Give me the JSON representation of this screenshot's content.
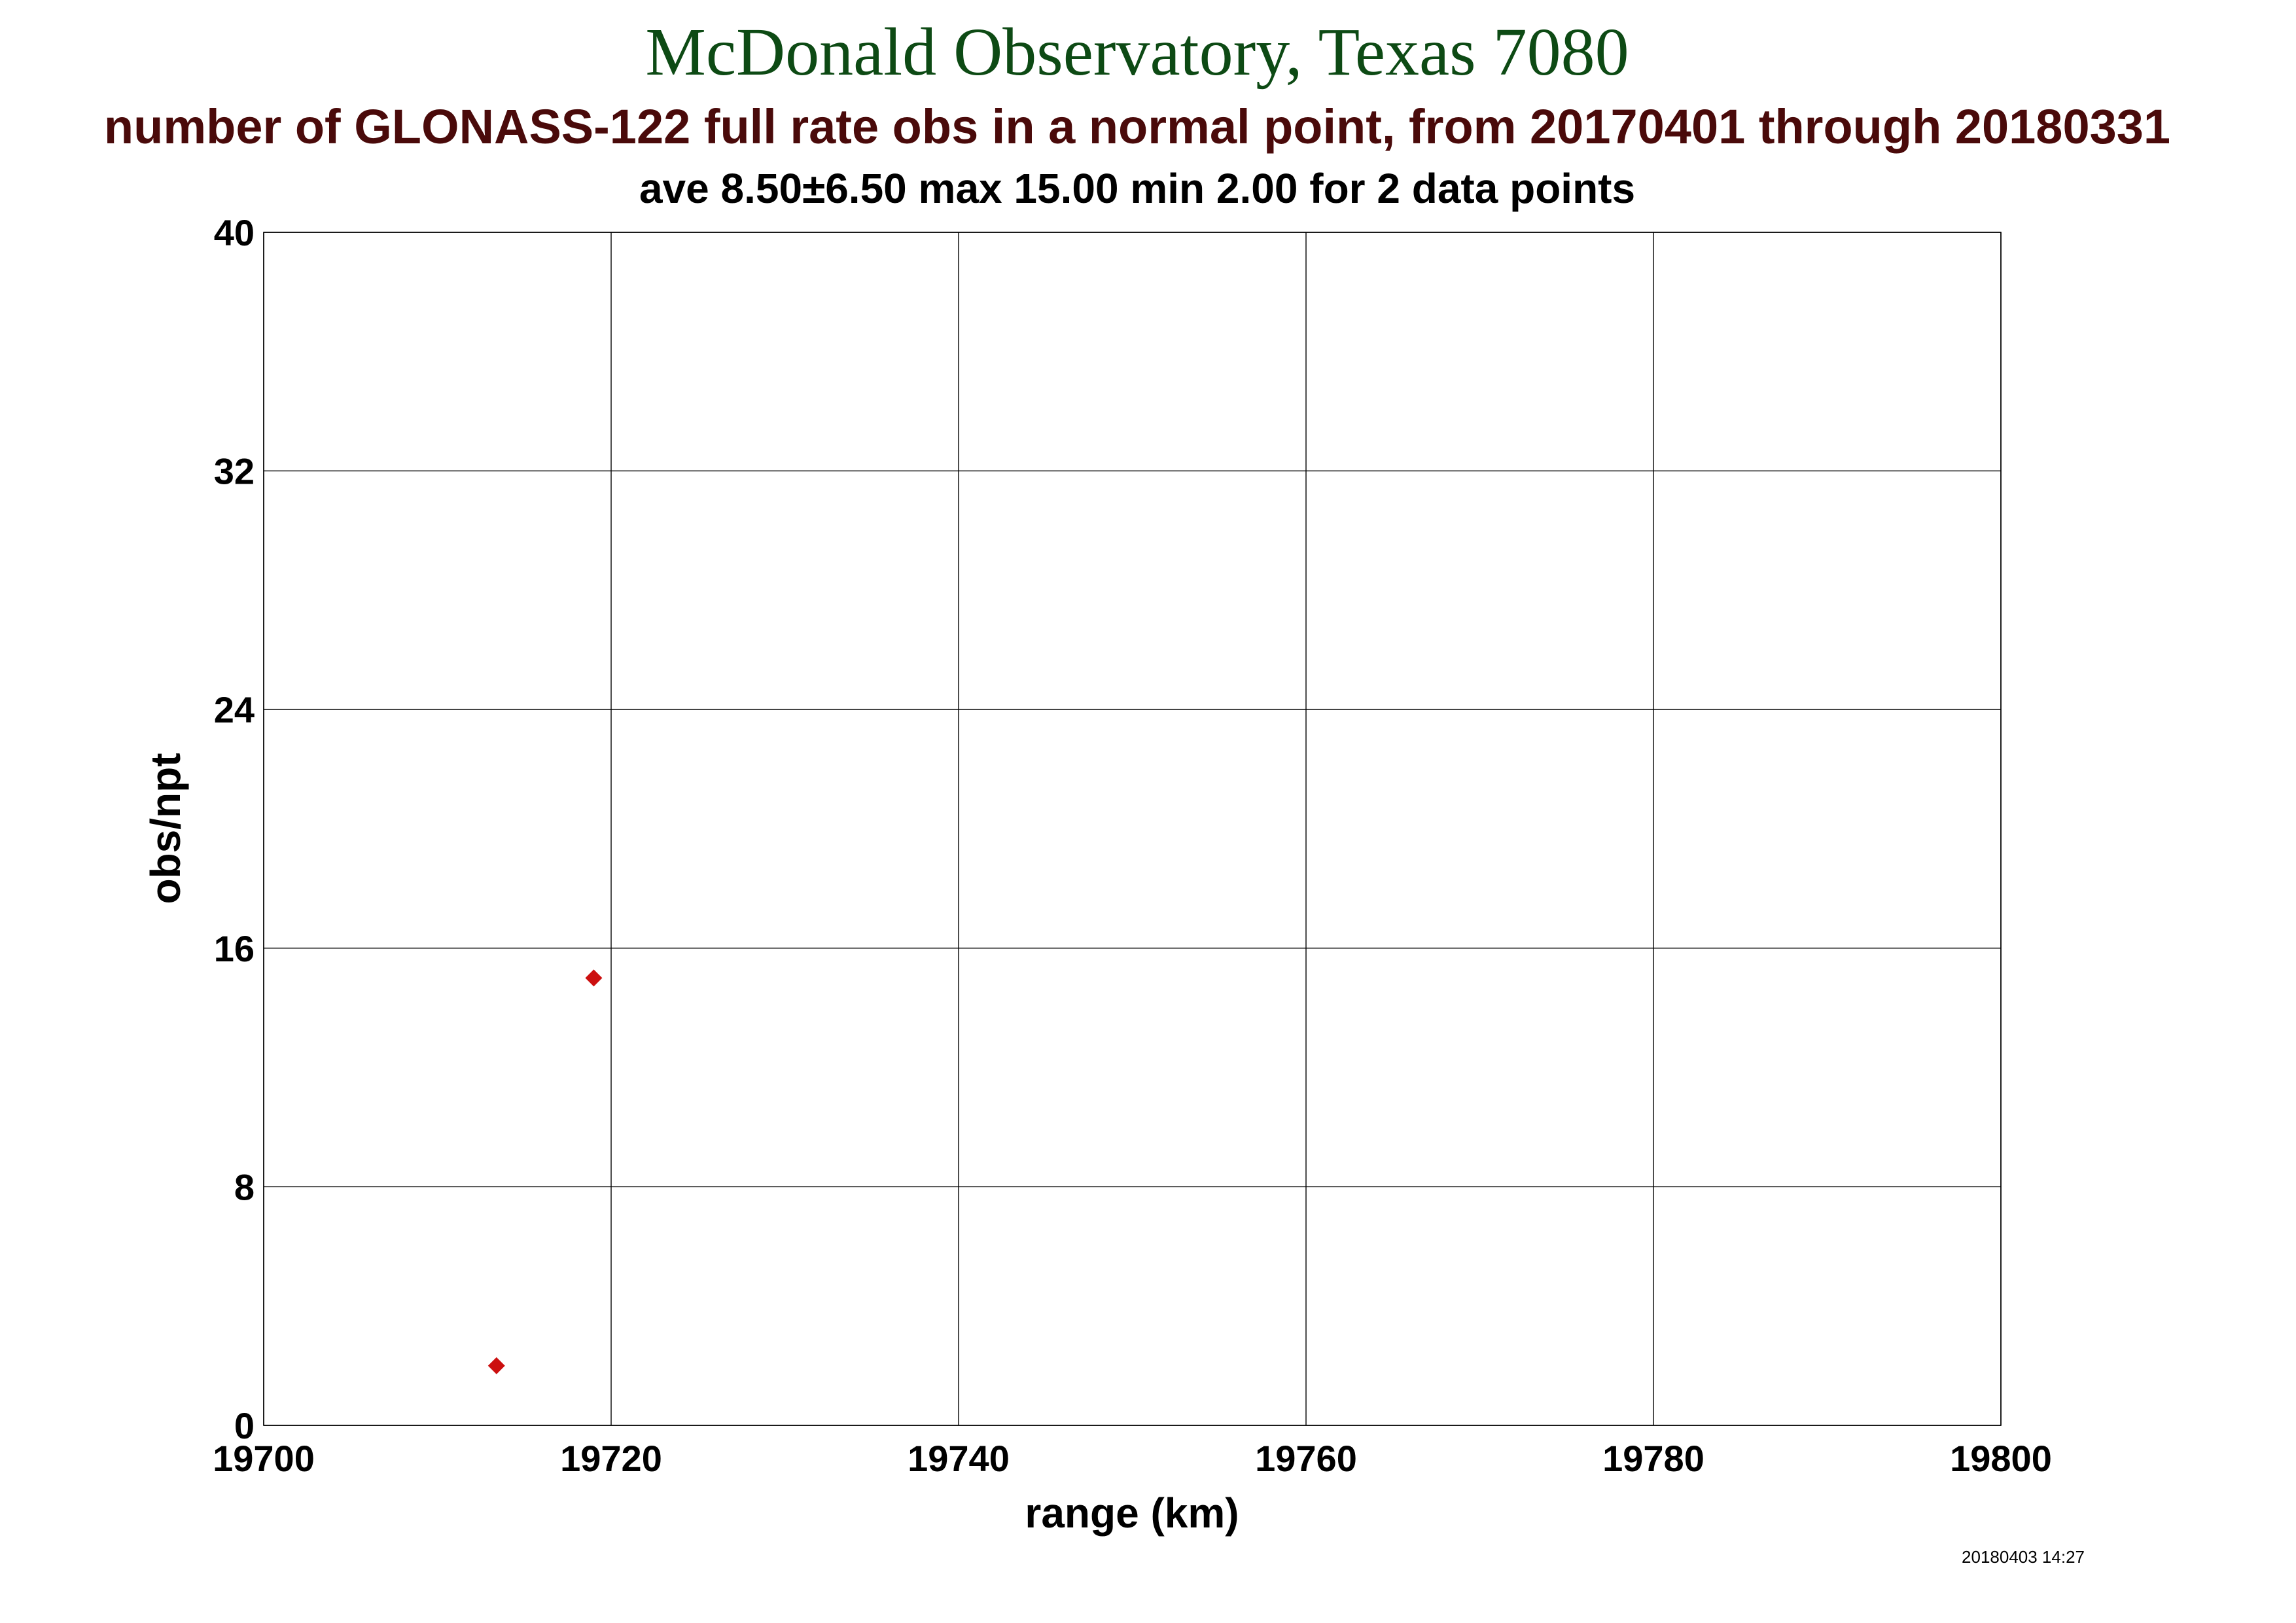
{
  "chart_data": {
    "type": "scatter",
    "title": "McDonald Observatory, Texas 7080",
    "subtitle": "number of GLONASS-122 full rate obs in a normal point, from 20170401 through 20180331",
    "stats": "ave 8.50±6.50 max 15.00 min 2.00 for 2 data points",
    "xlabel": "range (km)",
    "ylabel": "obs/npt",
    "xlim": [
      19700,
      19800
    ],
    "ylim": [
      0,
      40
    ],
    "xticks": [
      19700,
      19720,
      19740,
      19760,
      19780,
      19800
    ],
    "yticks": [
      0,
      8,
      16,
      24,
      32,
      40
    ],
    "grid": true,
    "marker": "diamond",
    "series": [
      {
        "color": "#cc0f0f",
        "points": [
          {
            "x": 19713.4,
            "y": 2
          },
          {
            "x": 19719.0,
            "y": 15
          }
        ]
      }
    ],
    "timestamp": "20180403 14:27"
  }
}
